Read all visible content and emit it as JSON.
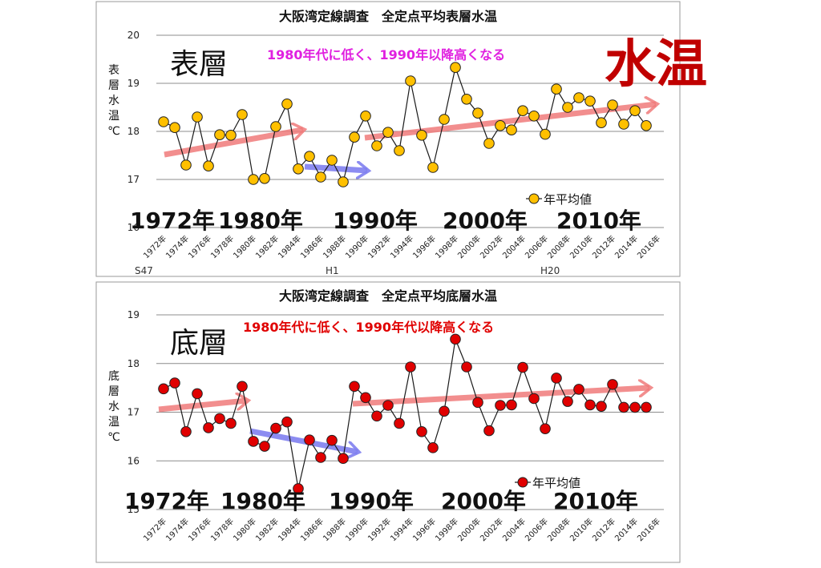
{
  "page": {
    "big_label": "水温",
    "big_label_color": "#c00000"
  },
  "chart_data": [
    {
      "type": "line",
      "title": "大阪湾定線調査　全定点平均表層水温",
      "panel_label": "表層",
      "ylabel": "表層水温℃",
      "annotation": "1980年代に低く、1990年以降高くなる",
      "annotation_color": "#e020e0",
      "ylim": [
        16,
        20
      ],
      "yticks": [
        "20",
        "19",
        "18",
        "17",
        "16"
      ],
      "xtick_labels": [
        "1972年",
        "1974年",
        "1976年",
        "1978年",
        "1980年",
        "1982年",
        "1984年",
        "1986年",
        "1988年",
        "1990年",
        "1992年",
        "1994年",
        "1996年",
        "1998年",
        "2000年",
        "2002年",
        "2004年",
        "2006年",
        "2008年",
        "2010年",
        "2012年",
        "2014年",
        "2016年"
      ],
      "era_labels": [
        "S47",
        "H1",
        "H20"
      ],
      "decade_labels": [
        "1972年",
        "1980年",
        "1990年",
        "2000年",
        "2010年"
      ],
      "legend": "年平均値",
      "marker_color": "#ffc000",
      "x": [
        1972,
        1973,
        1974,
        1975,
        1976,
        1977,
        1978,
        1979,
        1980,
        1981,
        1982,
        1983,
        1984,
        1985,
        1986,
        1987,
        1988,
        1989,
        1990,
        1991,
        1992,
        1993,
        1994,
        1995,
        1996,
        1997,
        1998,
        1999,
        2000,
        2001,
        2002,
        2003,
        2004,
        2005,
        2006,
        2007,
        2008,
        2009,
        2010,
        2011,
        2012,
        2013,
        2014,
        2015
      ],
      "values": [
        18.2,
        18.08,
        17.3,
        18.3,
        17.28,
        17.93,
        17.92,
        18.35,
        17.0,
        17.02,
        18.1,
        18.57,
        17.22,
        17.48,
        17.05,
        17.4,
        16.95,
        17.88,
        18.32,
        17.7,
        17.98,
        17.6,
        19.05,
        17.92,
        17.25,
        18.25,
        19.33,
        18.67,
        18.38,
        17.75,
        18.12,
        18.03,
        18.43,
        18.32,
        17.94,
        18.88,
        18.5,
        18.7,
        18.63,
        18.18,
        18.55,
        18.15,
        18.43,
        18.12
      ]
    },
    {
      "type": "line",
      "title": "大阪湾定線調査　全定点平均底層水温",
      "panel_label": "底層",
      "ylabel": "底層水温℃",
      "annotation": "1980年代に低く、1990年代以降高くなる",
      "annotation_color": "#e00000",
      "ylim": [
        15,
        19
      ],
      "yticks": [
        "19",
        "18",
        "17",
        "16",
        "15"
      ],
      "xtick_labels": [
        "1972年",
        "1974年",
        "1976年",
        "1978年",
        "1980年",
        "1982年",
        "1984年",
        "1986年",
        "1988年",
        "1990年",
        "1992年",
        "1994年",
        "1996年",
        "1998年",
        "2000年",
        "2002年",
        "2004年",
        "2006年",
        "2008年",
        "2010年",
        "2012年",
        "2014年",
        "2016年"
      ],
      "decade_labels": [
        "1972年",
        "1980年",
        "1990年",
        "2000年",
        "2010年"
      ],
      "legend": "年平均値",
      "marker_color": "#e00000",
      "x": [
        1972,
        1973,
        1974,
        1975,
        1976,
        1977,
        1978,
        1979,
        1980,
        1981,
        1982,
        1983,
        1984,
        1985,
        1986,
        1987,
        1988,
        1989,
        1990,
        1991,
        1992,
        1993,
        1994,
        1995,
        1996,
        1997,
        1998,
        1999,
        2000,
        2001,
        2002,
        2003,
        2004,
        2005,
        2006,
        2007,
        2008,
        2009,
        2010,
        2011,
        2012,
        2013,
        2014,
        2015
      ],
      "values": [
        17.48,
        17.6,
        16.6,
        17.38,
        16.68,
        16.87,
        16.77,
        17.53,
        16.4,
        16.3,
        16.67,
        16.8,
        15.43,
        16.43,
        16.07,
        16.42,
        16.05,
        17.53,
        17.3,
        16.92,
        17.14,
        16.77,
        17.93,
        16.6,
        16.27,
        17.02,
        18.5,
        17.93,
        17.2,
        16.62,
        17.14,
        17.15,
        17.92,
        17.28,
        16.66,
        17.7,
        17.22,
        17.47,
        17.15,
        17.12,
        17.57,
        17.1,
        17.1,
        17.1
      ]
    }
  ]
}
